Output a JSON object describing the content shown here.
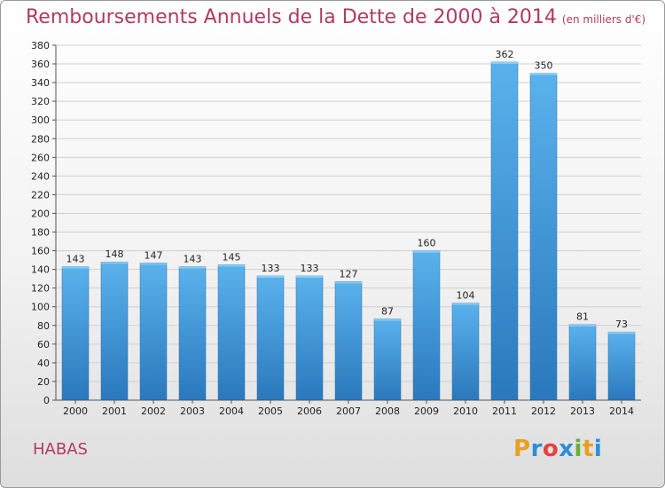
{
  "title": "Remboursements Annuels de la Dette de 2000 à 2014",
  "unit": "(en milliers d'€)",
  "location": "HABAS",
  "logo": {
    "letters": [
      "P",
      "r",
      "o",
      "x",
      "i",
      "t",
      "i"
    ],
    "colors": [
      "#e8a020",
      "#2a8fd8",
      "#e84040",
      "#2a8fd8",
      "#6ab030",
      "#e8a020",
      "#2a8fd8"
    ]
  },
  "colors": {
    "title": "#b03a64",
    "bar": "#3d93d9"
  },
  "chart_data": {
    "type": "bar",
    "categories": [
      "2000",
      "2001",
      "2002",
      "2003",
      "2004",
      "2005",
      "2006",
      "2007",
      "2008",
      "2009",
      "2010",
      "2011",
      "2012",
      "2013",
      "2014"
    ],
    "values": [
      143,
      148,
      147,
      143,
      145,
      133,
      133,
      127,
      87,
      160,
      104,
      362,
      350,
      81,
      73
    ],
    "ylim": [
      0,
      380
    ],
    "yticks": [
      0,
      20,
      40,
      60,
      80,
      100,
      120,
      140,
      160,
      180,
      200,
      220,
      240,
      260,
      280,
      300,
      320,
      340,
      360,
      380
    ],
    "grid": true
  }
}
